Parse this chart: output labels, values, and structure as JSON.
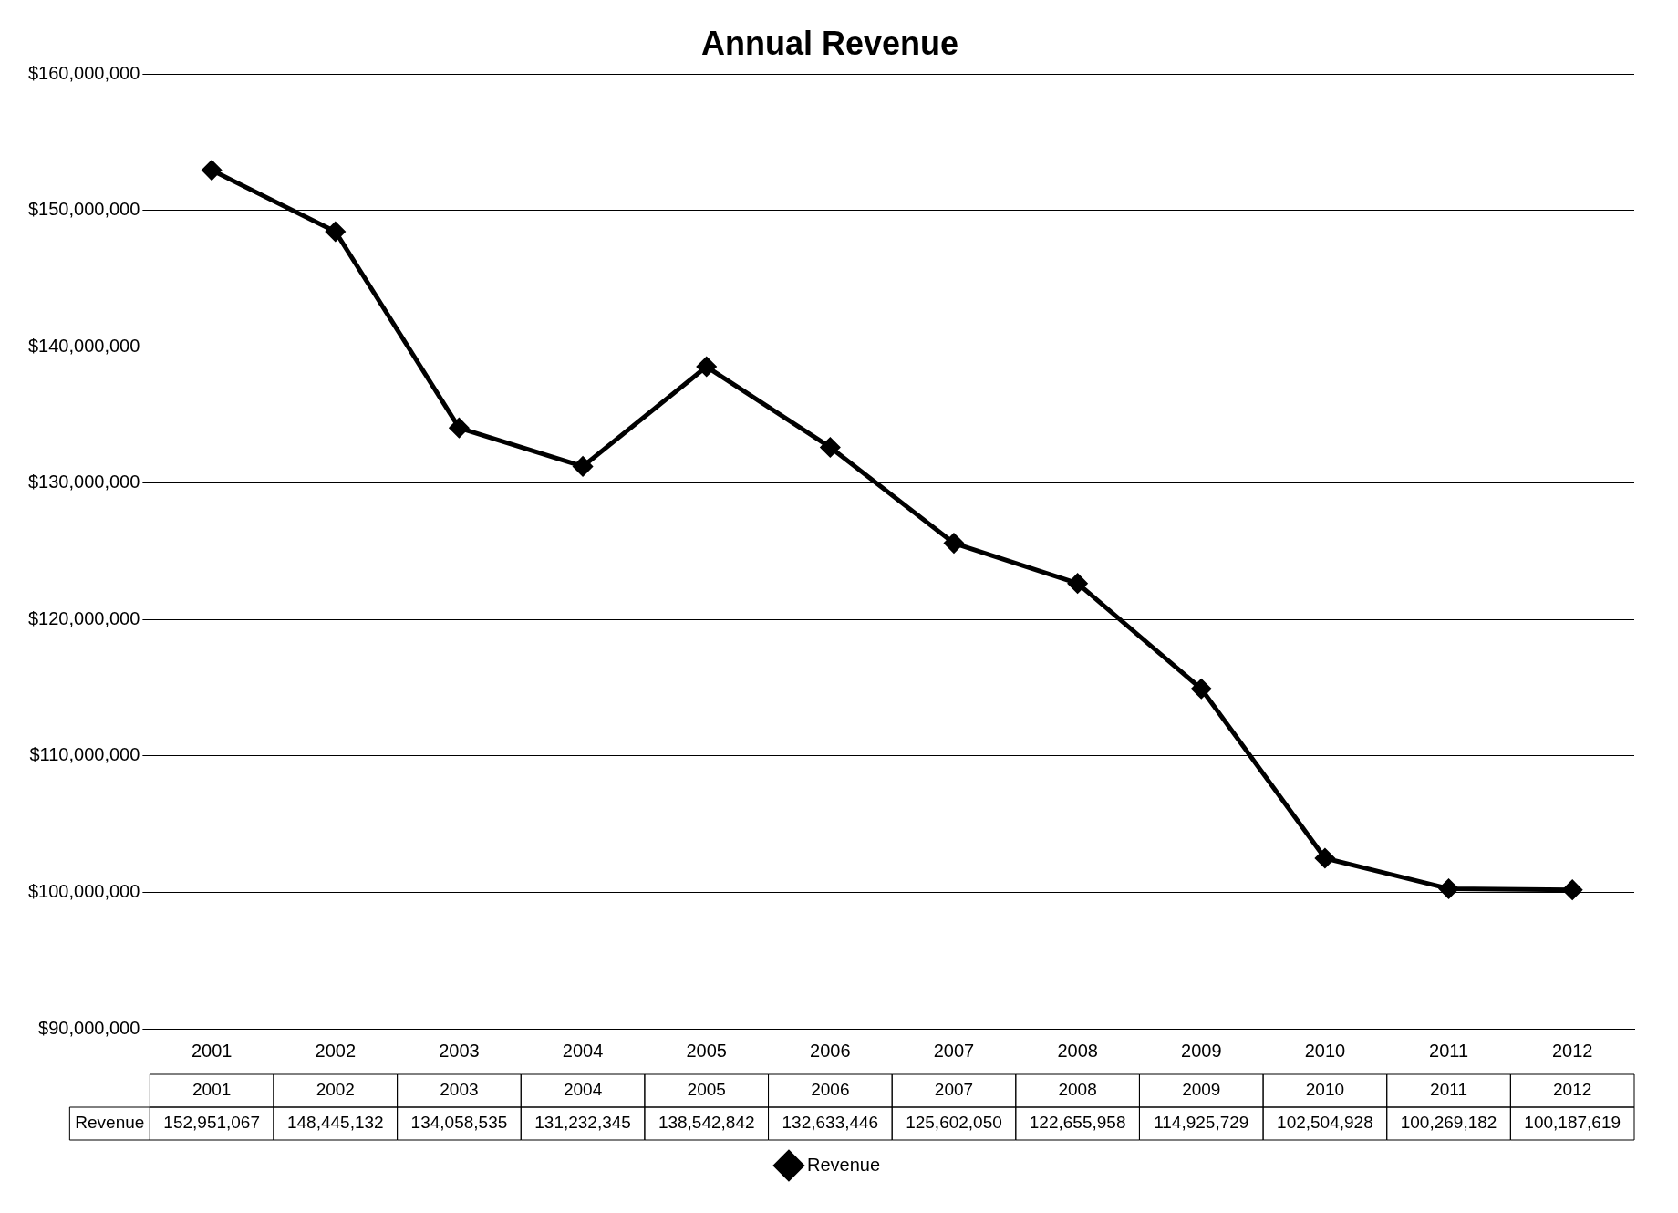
{
  "chart_data": {
    "type": "line",
    "title": "Annual Revenue",
    "categories": [
      "2001",
      "2002",
      "2003",
      "2004",
      "2005",
      "2006",
      "2007",
      "2008",
      "2009",
      "2010",
      "2011",
      "2012"
    ],
    "series": [
      {
        "name": "Revenue",
        "color": "#000000",
        "values": [
          152951067,
          148445132,
          134058535,
          131232345,
          138542842,
          132633446,
          125602050,
          122655958,
          114925729,
          102504928,
          100269182,
          100187619
        ],
        "value_labels": [
          "152,951,067",
          "148,445,132",
          "134,058,535",
          "131,232,345",
          "138,542,842",
          "132,633,446",
          "125,602,050",
          "122,655,958",
          "114,925,729",
          "102,504,928",
          "100,269,182",
          "100,187,619"
        ]
      }
    ],
    "ylim": [
      90000000,
      160000000
    ],
    "yticks": [
      {
        "value": 90000000,
        "label": "$90,000,000"
      },
      {
        "value": 100000000,
        "label": "$100,000,000"
      },
      {
        "value": 110000000,
        "label": "$110,000,000"
      },
      {
        "value": 120000000,
        "label": "$120,000,000"
      },
      {
        "value": 130000000,
        "label": "$130,000,000"
      },
      {
        "value": 140000000,
        "label": "$140,000,000"
      },
      {
        "value": 150000000,
        "label": "$150,000,000"
      },
      {
        "value": 160000000,
        "label": "$160,000,000"
      }
    ],
    "grid": "y",
    "legend": "bottom",
    "marker": "diamond",
    "line_style": "solid"
  }
}
